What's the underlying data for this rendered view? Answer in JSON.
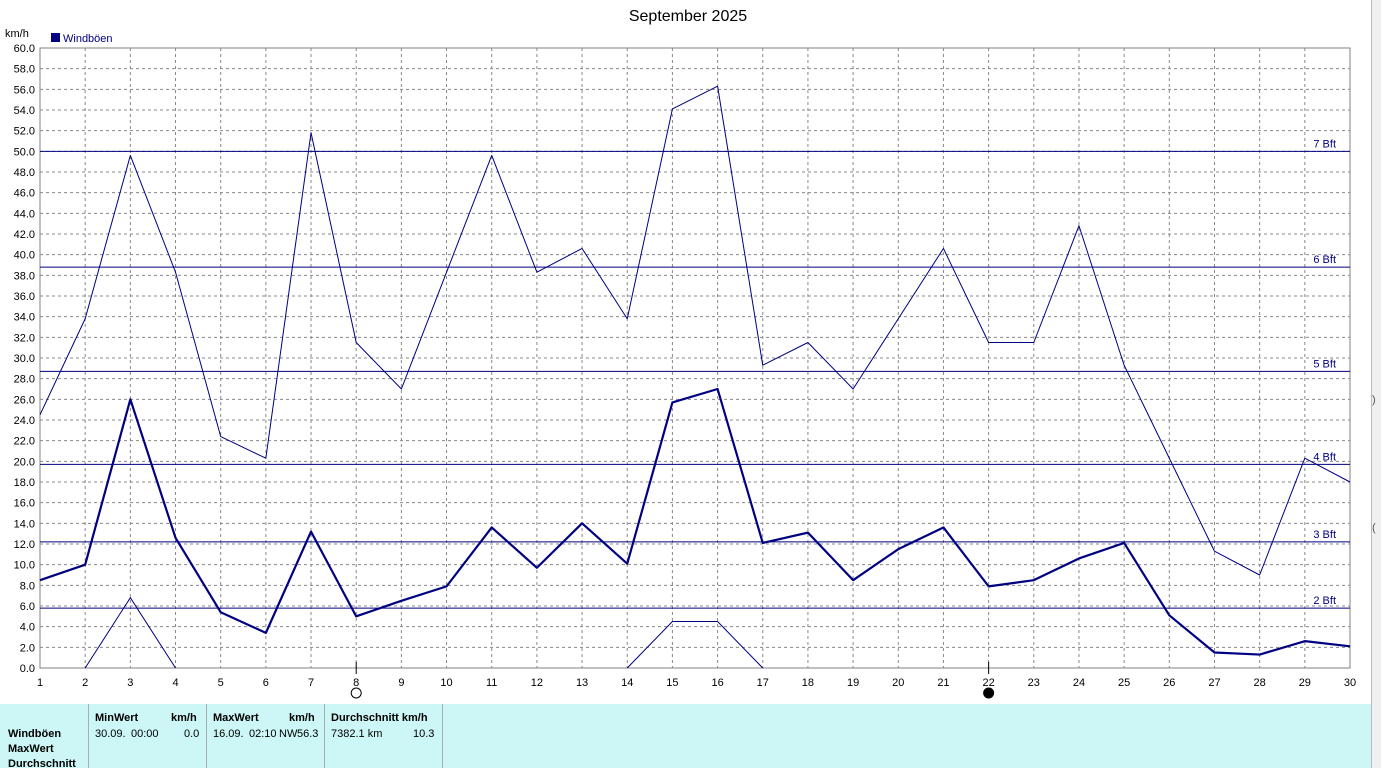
{
  "chart_data": {
    "type": "line",
    "title": "September 2025",
    "ylabel": "km/h",
    "xlim": [
      1,
      30
    ],
    "ylim": [
      0,
      60
    ],
    "y_tick_step": 2,
    "grid": true,
    "legend_position": "top-left",
    "x": [
      1,
      2,
      3,
      4,
      5,
      6,
      7,
      8,
      9,
      10,
      11,
      12,
      13,
      14,
      15,
      16,
      17,
      18,
      19,
      20,
      21,
      22,
      23,
      24,
      25,
      26,
      27,
      28,
      29,
      30
    ],
    "series": [
      {
        "name": "Windböen",
        "role": "average",
        "color": "#000080",
        "values": [
          8.5,
          10.0,
          26.0,
          12.6,
          5.4,
          3.4,
          13.2,
          5.0,
          6.5,
          7.9,
          13.6,
          9.7,
          14.0,
          10.1,
          25.7,
          27.0,
          12.1,
          13.1,
          8.5,
          11.5,
          13.6,
          7.9,
          8.5,
          10.6,
          12.1,
          5.1,
          1.5,
          1.3,
          2.6,
          2.1
        ]
      },
      {
        "name": "",
        "role": "max",
        "color": "#000080",
        "values": [
          24.5,
          33.8,
          49.6,
          38.3,
          22.4,
          20.3,
          51.8,
          31.5,
          27.0,
          38.3,
          49.6,
          38.3,
          40.6,
          33.8,
          54.1,
          56.3,
          29.3,
          31.5,
          27.0,
          33.8,
          40.6,
          31.5,
          31.5,
          42.8,
          29.3,
          20.3,
          11.3,
          9.0,
          20.3,
          18.0
        ]
      },
      {
        "name": "",
        "role": "min",
        "color": "#000080",
        "segments": [
          {
            "x": [
              2,
              3,
              4
            ],
            "values": [
              0.0,
              6.8,
              0.0
            ]
          },
          {
            "x": [
              14,
              15,
              16,
              17
            ],
            "values": [
              0.0,
              4.5,
              4.5,
              0.0
            ]
          }
        ]
      }
    ],
    "beaufort_lines": [
      {
        "label": "2 Bft",
        "value": 5.8
      },
      {
        "label": "3 Bft",
        "value": 12.2
      },
      {
        "label": "4 Bft",
        "value": 19.7
      },
      {
        "label": "5 Bft",
        "value": 28.7
      },
      {
        "label": "6 Bft",
        "value": 38.8
      },
      {
        "label": "7 Bft",
        "value": 50.0
      }
    ],
    "moon_phases": [
      {
        "day": 8,
        "phase": "full"
      },
      {
        "day": 22,
        "phase": "new"
      }
    ]
  },
  "legend": {
    "label": "Windböen",
    "color": "#000080"
  },
  "stats": {
    "row_labels": [
      "Windböen",
      "MaxWert",
      "Durchschnitt"
    ],
    "min": {
      "header": "MinWert",
      "unit": "km/h",
      "date": "30.09.",
      "time": "00:00",
      "value": "0.0"
    },
    "max": {
      "header": "MaxWert",
      "unit": "km/h",
      "date": "16.09.",
      "time": "02:10",
      "dir": "NW",
      "value": "56.3"
    },
    "avg": {
      "header": "Durchschnitt km/h",
      "distance": "7382.1 km",
      "value": "10.3"
    }
  },
  "edge_fragments": [
    ")",
    "("
  ]
}
